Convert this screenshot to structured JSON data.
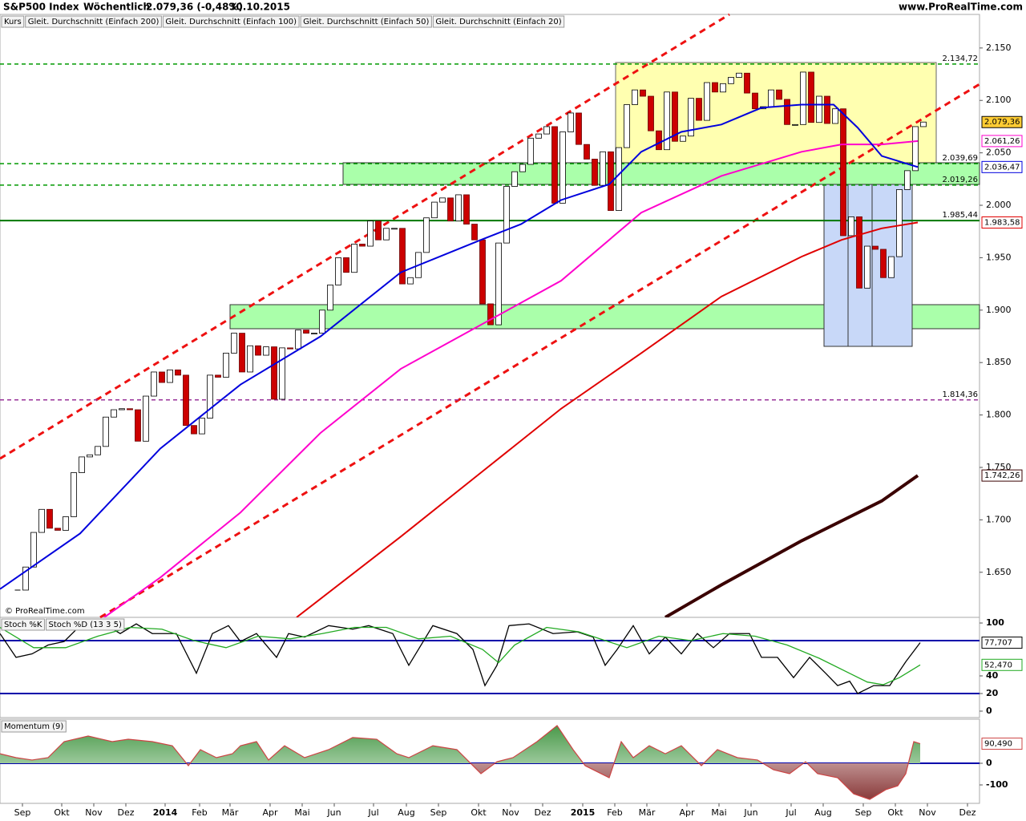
{
  "header": {
    "title": "S&P500 Index",
    "period": "Wöchentlich",
    "quote": "2.079,36 (-0,48%)",
    "date": "30.10.2015",
    "site": "www.ProRealTime.com",
    "watermark": "© ProRealTime.com"
  },
  "chart_data": [
    {
      "type": "candlestick",
      "xlim": [
        -2.2,
        120
      ],
      "ylim": [
        1607,
        2182
      ],
      "yticks": [
        {
          "value": 2150,
          "label": "2.150"
        },
        {
          "value": 2100,
          "label": "2.100"
        },
        {
          "value": 2050,
          "label": "2.050"
        },
        {
          "value": 2000,
          "label": "2.000"
        },
        {
          "value": 1950,
          "label": "1.950"
        },
        {
          "value": 1900,
          "label": "1.900"
        },
        {
          "value": 1850,
          "label": "1.850"
        },
        {
          "value": 1800,
          "label": "1.800"
        },
        {
          "value": 1750,
          "label": "1.750"
        },
        {
          "value": 1700,
          "label": "1.700"
        },
        {
          "value": 1650,
          "label": "1.650"
        }
      ],
      "series": [
        {
          "name": "Kurs",
          "color": "#cc0000",
          "x": [
            0,
            1,
            2,
            3,
            4,
            5,
            6,
            7,
            8,
            9,
            10,
            11,
            12,
            13,
            14,
            15,
            16,
            17,
            18,
            19,
            20,
            21,
            22,
            23,
            24,
            25,
            26,
            27,
            28,
            29,
            30,
            31,
            32,
            33,
            34,
            35,
            36,
            37,
            38,
            39,
            40,
            41,
            42,
            43,
            44,
            45,
            46,
            47,
            48,
            49,
            50,
            51,
            52,
            53,
            54,
            55,
            56,
            57,
            58,
            59,
            60,
            61,
            62,
            63,
            64,
            65,
            66,
            67,
            68,
            69,
            70,
            71,
            72,
            73,
            74,
            75,
            76,
            77,
            78,
            79,
            80,
            81,
            82,
            83,
            84,
            85,
            86,
            87,
            88,
            89,
            90,
            91,
            92,
            93,
            94,
            95,
            96,
            97,
            98,
            99,
            100,
            101,
            102,
            103,
            104,
            105,
            106,
            107,
            108,
            109,
            110,
            111,
            112,
            113
          ],
          "values": [
            1633,
            1655,
            1688,
            1710,
            1692,
            1690,
            1703,
            1745,
            1760,
            1762,
            1770,
            1798,
            1805,
            1806,
            1805,
            1775,
            1818,
            1841,
            1831,
            1843,
            1838,
            1790,
            1782,
            1797,
            1838,
            1836,
            1859,
            1878,
            1841,
            1866,
            1857,
            1865,
            1815,
            1864,
            1863,
            1881,
            1878,
            1878,
            1900,
            1924,
            1950,
            1936,
            1963,
            1961,
            1985,
            1967,
            1978,
            1978,
            1925,
            1931,
            1955,
            1988,
            2003,
            2007,
            1985,
            2010,
            1982,
            1967,
            1906,
            1886,
            1964,
            2018,
            2032,
            2039,
            2064,
            2068,
            2075,
            2002,
            2070,
            2088,
            2058,
            2044,
            2019,
            2051,
            1995,
            2055,
            2096,
            2110,
            2104,
            2071,
            2053,
            2108,
            2061,
            2066,
            2102,
            2081,
            2117,
            2108,
            2116,
            2122,
            2126,
            2107,
            2092,
            2094,
            2110,
            2101,
            2077,
            2077,
            2127,
            2079,
            2104,
            2078,
            2092,
            1971,
            1989,
            1921,
            1961,
            1958,
            1931,
            1951,
            2015,
            2033,
            2075,
            2079.36
          ]
        },
        {
          "name": "Gleit. Durchschnitt (Einfach 200)",
          "color": "#3a0000",
          "x": [
            80.8,
            87.8,
            97.8,
            107.8,
            112.3
          ],
          "values": [
            1607,
            1638,
            1680,
            1718,
            1742.26
          ]
        },
        {
          "name": "Gleit. Durchschnitt (Einfach 100)",
          "color": "#e00000",
          "x": [
            34.8,
            47.8,
            57.8,
            67.8,
            77.8,
            87.8,
            97.8,
            102.8,
            107.8,
            112.3
          ],
          "values": [
            1607,
            1684,
            1745,
            1806,
            1859,
            1913,
            1951,
            1967,
            1978,
            1983.58
          ]
        },
        {
          "name": "Gleit. Durchschnitt (Einfach 50)",
          "color": "#ff00cc",
          "x": [
            10.8,
            17.8,
            27.8,
            37.8,
            47.8,
            57.8,
            67.8,
            77.8,
            87.8,
            97.8,
            102.8,
            107.8,
            112.3
          ],
          "values": [
            1607,
            1645,
            1707,
            1783,
            1844,
            1886,
            1928,
            1993,
            2028,
            2051,
            2058,
            2058,
            2061.26
          ]
        },
        {
          "name": "Gleit. Durchschnitt (Einfach 20)",
          "color": "#0000dd",
          "x": [
            -2.2,
            7.8,
            17.8,
            27.8,
            37.8,
            47.8,
            57.8,
            62.8,
            67.8,
            73.8,
            77.8,
            82.8,
            87.8,
            92.8,
            97.8,
            101.8,
            104.8,
            107.8,
            112.3
          ],
          "values": [
            1634,
            1687,
            1768,
            1829,
            1875,
            1936,
            1967,
            1982,
            2005,
            2020,
            2051,
            2070,
            2077,
            2093,
            2096,
            2096,
            2074,
            2047,
            2036.47
          ]
        }
      ],
      "levels": [
        {
          "value": 2134.72,
          "label": "2.134,72",
          "color": "#009900",
          "style": "dashed"
        },
        {
          "value": 2039.69,
          "label": "2.039,69",
          "color": "#009900",
          "style": "dashed"
        },
        {
          "value": 2019.26,
          "label": "2.019,26",
          "color": "#009900",
          "style": "dashed"
        },
        {
          "value": 1985.44,
          "label": "1.985,44",
          "color": "#007700",
          "style": "solid"
        },
        {
          "value": 1814.36,
          "label": "1.814,36",
          "color": "#993399",
          "style": "dashed"
        }
      ],
      "price_labels": [
        {
          "value": 2079.36,
          "label": "2.079,36",
          "color": "#000000",
          "background": "#ffcc33"
        },
        {
          "value": 2061.26,
          "label": "2.061,26",
          "color": "#ff00cc",
          "background": "#ffffff"
        },
        {
          "value": 2036.47,
          "label": "2.036,47",
          "color": "#0000dd",
          "background": "#ffffff"
        },
        {
          "value": 1983.58,
          "label": "1.983,58",
          "color": "#e00000",
          "background": "#ffffff"
        },
        {
          "value": 1742.26,
          "label": "1.742,26",
          "color": "#3a0000",
          "background": "#ffffff"
        }
      ]
    },
    {
      "type": "line",
      "xlim": [
        -2.2,
        120
      ],
      "ylim": [
        -7.3,
        106.4
      ],
      "yticks": [
        100,
        40,
        20,
        0
      ],
      "series": [
        {
          "name": "Stoch %K",
          "color": "#000000",
          "x": [
            -2.2,
            -0.2,
            1.8,
            3.8,
            5.8,
            7.8,
            10.8,
            12.8,
            14.8,
            16.8,
            19.8,
            22.3,
            24.3,
            26.3,
            27.8,
            29.8,
            32.3,
            33.8,
            35.8,
            38.8,
            41.8,
            43.8,
            46.8,
            48.8,
            51.8,
            54.8,
            56.8,
            58.3,
            59.8,
            61.3,
            63.8,
            66.8,
            69.8,
            71.8,
            73.3,
            74.8,
            76.8,
            78.8,
            80.8,
            82.8,
            84.8,
            86.8,
            88.8,
            91.3,
            92.8,
            94.8,
            96.8,
            98.8,
            100.8,
            102.3,
            103.8,
            104.8,
            106.8,
            108.8,
            110.8,
            112.6
          ],
          "values": [
            88,
            61,
            65,
            75,
            79,
            97,
            99,
            88,
            99,
            88,
            88,
            43,
            88,
            97,
            79,
            88,
            61,
            88,
            84,
            97,
            93,
            97,
            88,
            52,
            97,
            88,
            70,
            29,
            52,
            97,
            99,
            88,
            90,
            84,
            52,
            70,
            97,
            65,
            84,
            65,
            88,
            72,
            88,
            88,
            61,
            61,
            38,
            61,
            43,
            29,
            34,
            20,
            29,
            29,
            56,
            77.707
          ]
        },
        {
          "name": "Stoch %D (13 3 5)",
          "color": "#22aa22",
          "x": [
            -2.2,
            2,
            6,
            10,
            14,
            18,
            22,
            26,
            30,
            34,
            38,
            42,
            46,
            50,
            54,
            58,
            60,
            62,
            66,
            70,
            74,
            76,
            80,
            84,
            88,
            92,
            96,
            100,
            104,
            106,
            108,
            110,
            112.6
          ],
          "values": [
            95,
            72,
            72,
            85,
            95,
            93,
            80,
            72,
            85,
            82,
            88,
            95,
            95,
            82,
            85,
            70,
            55,
            75,
            95,
            90,
            78,
            72,
            85,
            80,
            88,
            85,
            75,
            60,
            42,
            33,
            30,
            38,
            52.47
          ]
        }
      ],
      "levels": [
        {
          "value": 80,
          "color": "#0000aa",
          "style": "solid"
        },
        {
          "value": 20,
          "color": "#0000aa",
          "style": "solid"
        }
      ],
      "price_labels": [
        {
          "value": 77.707,
          "label": "77,707",
          "color": "#000000",
          "background": "#ffffff"
        },
        {
          "value": 52.47,
          "label": "52,470",
          "color": "#22aa22",
          "background": "#ffffff"
        }
      ]
    },
    {
      "type": "area",
      "xlim": [
        -2.2,
        120
      ],
      "ylim": [
        -185.2,
        203.7
      ],
      "yticks": [
        0,
        -100
      ],
      "series": [
        {
          "name": "Momentum (9)",
          "color": "#cc4444",
          "x": [
            -2.2,
            -0.2,
            1.8,
            3.8,
            5.8,
            8.8,
            11.8,
            13.8,
            16.8,
            19.3,
            21.3,
            22.8,
            24.8,
            26.8,
            27.8,
            29.8,
            31.3,
            33.3,
            35.8,
            38.8,
            41.8,
            44.8,
            47.3,
            48.8,
            51.8,
            54.8,
            57.8,
            59.8,
            61.8,
            64.8,
            67.3,
            69.3,
            70.8,
            73.8,
            75.3,
            76.8,
            78.8,
            80.8,
            82.8,
            85.3,
            87.3,
            89.8,
            92.3,
            94.3,
            96.3,
            98.3,
            99.8,
            102.3,
            104.3,
            106.3,
            108.3,
            109.8,
            110.8,
            111.8,
            112.6
          ],
          "values": [
            44,
            26,
            15,
            26,
            100,
            126,
            100,
            111,
            100,
            81,
            -11,
            63,
            26,
            44,
            81,
            100,
            15,
            81,
            26,
            63,
            119,
            111,
            44,
            26,
            81,
            63,
            -48,
            7,
            26,
            100,
            174,
            63,
            -11,
            -67,
            100,
            26,
            81,
            44,
            81,
            -11,
            63,
            26,
            15,
            -30,
            -48,
            7,
            -48,
            -67,
            -141,
            -167,
            -122,
            -104,
            -48,
            100,
            90.49
          ]
        }
      ],
      "levels": [
        {
          "value": 0,
          "color": "#0000aa",
          "style": "solid"
        }
      ],
      "price_labels": [
        {
          "value": 90.49,
          "label": "90,490",
          "color": "#cc4444",
          "background": "#ffffff"
        }
      ],
      "xticks": [
        {
          "value": 0.6,
          "label": "Sep"
        },
        {
          "value": 5.5,
          "label": "Okt"
        },
        {
          "value": 9.5,
          "label": "Nov"
        },
        {
          "value": 13.5,
          "label": "Dez"
        },
        {
          "value": 18.4,
          "label": "2014"
        },
        {
          "value": 22.7,
          "label": "Feb"
        },
        {
          "value": 26.5,
          "label": "Mär"
        },
        {
          "value": 31.5,
          "label": "Apr"
        },
        {
          "value": 35.5,
          "label": "Mai"
        },
        {
          "value": 39.5,
          "label": "Jun"
        },
        {
          "value": 44.4,
          "label": "Jul"
        },
        {
          "value": 48.5,
          "label": "Aug"
        },
        {
          "value": 52.5,
          "label": "Sep"
        },
        {
          "value": 57.5,
          "label": "Okt"
        },
        {
          "value": 61.5,
          "label": "Nov"
        },
        {
          "value": 65.5,
          "label": "Dez"
        },
        {
          "value": 70.5,
          "label": "2015"
        },
        {
          "value": 74.5,
          "label": "Feb"
        },
        {
          "value": 78.5,
          "label": "Mär"
        },
        {
          "value": 83.5,
          "label": "Apr"
        },
        {
          "value": 87.5,
          "label": "Mai"
        },
        {
          "value": 91.5,
          "label": "Jun"
        },
        {
          "value": 96.5,
          "label": "Jul"
        },
        {
          "value": 100.5,
          "label": "Aug"
        },
        {
          "value": 105.5,
          "label": "Sep"
        },
        {
          "value": 109.5,
          "label": "Okt"
        },
        {
          "value": 113.5,
          "label": "Nov"
        },
        {
          "value": 118.5,
          "label": "Dez"
        }
      ]
    }
  ]
}
